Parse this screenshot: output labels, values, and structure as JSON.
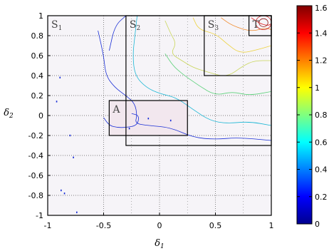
{
  "chart_data": {
    "type": "contour",
    "xlabel": "δ",
    "xlabel_sub": "1",
    "ylabel": "δ",
    "ylabel_sub": "2",
    "xlim": [
      -1,
      1
    ],
    "ylim": [
      -1,
      1
    ],
    "grid": true,
    "x_ticks": [
      -1,
      -0.5,
      0,
      0.5,
      1
    ],
    "x_tick_labels": [
      "-1",
      "-0.5",
      "0",
      "0.5",
      "1"
    ],
    "y_ticks": [
      1,
      0.8,
      0.6,
      0.4,
      0.2,
      0,
      -0.2,
      -0.4,
      -0.6,
      -0.8,
      -1
    ],
    "y_tick_labels": [
      "1",
      "0.8",
      "0.6",
      "0.4",
      "0.2",
      "0",
      "-0.2",
      "-0.4",
      "-0.6",
      "-0.8",
      "-1"
    ],
    "colorbar": {
      "range": [
        0,
        1.6
      ],
      "ticks": [
        0,
        0.2,
        0.4,
        0.6,
        0.8,
        1,
        1.2,
        1.4,
        1.6
      ],
      "tick_labels": [
        "0",
        "0.2",
        "0.4",
        "0.6",
        "0.8",
        "1",
        "1.2",
        "1.4",
        "1.6"
      ],
      "colormap": "jet"
    },
    "regions": [
      {
        "id": "s1",
        "label": "S",
        "sub": "1",
        "x": [
          -1,
          1
        ],
        "y": [
          -1,
          1
        ]
      },
      {
        "id": "s2",
        "label": "S",
        "sub": "2",
        "x": [
          -0.3,
          1
        ],
        "y": [
          -0.3,
          1
        ]
      },
      {
        "id": "s3",
        "label": "S",
        "sub": "3",
        "x": [
          0.4,
          1
        ],
        "y": [
          0.4,
          1
        ]
      },
      {
        "id": "t",
        "label": "T",
        "sub": "",
        "x": [
          0.8,
          1
        ],
        "y": [
          0.8,
          1
        ]
      },
      {
        "id": "a",
        "label": "A",
        "sub": "",
        "x": [
          -0.45,
          0.25
        ],
        "y": [
          -0.2,
          0.15
        ]
      }
    ],
    "contours": [
      {
        "level": 0.15,
        "color": "#1a2fd6",
        "points": [
          [
            -0.55,
            0.85
          ],
          [
            -0.5,
            0.6
          ],
          [
            -0.48,
            0.4
          ],
          [
            -0.4,
            0.28
          ],
          [
            -0.3,
            0.2
          ],
          [
            -0.22,
            0.12
          ],
          [
            -0.2,
            0.0
          ],
          [
            -0.22,
            -0.08
          ],
          [
            -0.1,
            -0.1
          ],
          [
            0.1,
            -0.12
          ],
          [
            0.3,
            -0.22
          ],
          [
            0.5,
            -0.24
          ],
          [
            0.7,
            -0.22
          ],
          [
            1.0,
            -0.25
          ]
        ]
      },
      {
        "level": 0.15,
        "color": "#1a2fd6",
        "points": [
          [
            -0.45,
            0.65
          ],
          [
            -0.4,
            0.9
          ],
          [
            -0.3,
            1.0
          ]
        ]
      },
      {
        "level": 0.15,
        "color": "#1a2fd6",
        "points": [
          [
            -0.5,
            -0.02
          ],
          [
            -0.45,
            -0.1
          ],
          [
            -0.38,
            -0.12
          ],
          [
            -0.3,
            -0.12
          ],
          [
            -0.2,
            -0.1
          ],
          [
            -0.18,
            0.0
          ],
          [
            -0.25,
            0.02
          ]
        ]
      },
      {
        "level": 0.45,
        "color": "#19b6d4",
        "points": [
          [
            -0.2,
            1.0
          ],
          [
            -0.22,
            0.8
          ],
          [
            -0.24,
            0.6
          ],
          [
            -0.22,
            0.4
          ],
          [
            -0.12,
            0.28
          ],
          [
            0.0,
            0.22
          ],
          [
            0.15,
            0.18
          ],
          [
            0.3,
            0.06
          ],
          [
            0.45,
            -0.05
          ],
          [
            0.6,
            -0.08
          ],
          [
            0.8,
            -0.06
          ],
          [
            1.0,
            -0.1
          ]
        ]
      },
      {
        "level": 0.7,
        "color": "#5cd17a",
        "points": [
          [
            0.05,
            0.62
          ],
          [
            0.12,
            0.5
          ],
          [
            0.2,
            0.42
          ],
          [
            0.35,
            0.3
          ],
          [
            0.5,
            0.2
          ],
          [
            0.65,
            0.24
          ],
          [
            0.8,
            0.2
          ],
          [
            1.0,
            0.24
          ]
        ]
      },
      {
        "level": 0.85,
        "color": "#c9d65a",
        "points": [
          [
            0.05,
            0.95
          ],
          [
            0.1,
            0.82
          ],
          [
            0.15,
            0.72
          ],
          [
            0.1,
            0.62
          ],
          [
            0.2,
            0.55
          ],
          [
            0.3,
            0.48
          ],
          [
            0.42,
            0.44
          ],
          [
            0.6,
            0.38
          ],
          [
            0.75,
            0.5
          ],
          [
            0.85,
            0.55
          ],
          [
            1.0,
            0.55
          ]
        ]
      },
      {
        "level": 1.05,
        "color": "#ecd23e",
        "points": [
          [
            0.3,
            0.98
          ],
          [
            0.35,
            0.86
          ],
          [
            0.5,
            0.82
          ],
          [
            0.6,
            0.72
          ],
          [
            0.72,
            0.62
          ],
          [
            0.88,
            0.66
          ],
          [
            1.0,
            0.7
          ]
        ]
      },
      {
        "level": 1.3,
        "color": "#f08a2a",
        "points": [
          [
            0.55,
            0.98
          ],
          [
            0.65,
            0.9
          ],
          [
            0.82,
            0.84
          ],
          [
            0.95,
            0.88
          ],
          [
            1.0,
            0.86
          ]
        ]
      },
      {
        "level": 1.5,
        "color": "#e02020",
        "points": [
          [
            0.82,
            0.98
          ],
          [
            0.9,
            0.92
          ],
          [
            0.97,
            0.9
          ],
          [
            1.0,
            0.92
          ]
        ]
      }
    ],
    "inner_contours": [
      {
        "cx": 0.93,
        "cy": 0.93,
        "r": 0.04,
        "color": "#8a1010"
      },
      {
        "cx": 0.93,
        "cy": 0.93,
        "r": 0.07,
        "color": "#c41616"
      }
    ],
    "scatter_specks": [
      {
        "x": -0.92,
        "y": 0.14,
        "color": "#1a2fd6"
      },
      {
        "x": -0.89,
        "y": 0.38,
        "color": "#1a2fd6"
      },
      {
        "x": -0.8,
        "y": -0.2,
        "color": "#1a2fd6"
      },
      {
        "x": -0.77,
        "y": -0.42,
        "color": "#1a2fd6"
      },
      {
        "x": -0.85,
        "y": -0.78,
        "color": "#1a2fd6"
      },
      {
        "x": -0.74,
        "y": -0.97,
        "color": "#1a2fd6"
      },
      {
        "x": -0.88,
        "y": -0.75,
        "color": "#1a2fd6"
      },
      {
        "x": -0.27,
        "y": -0.13,
        "color": "#1a2fd6"
      },
      {
        "x": -0.1,
        "y": -0.03,
        "color": "#1a2fd6"
      },
      {
        "x": 0.1,
        "y": -0.05,
        "color": "#1a2fd6"
      }
    ]
  }
}
